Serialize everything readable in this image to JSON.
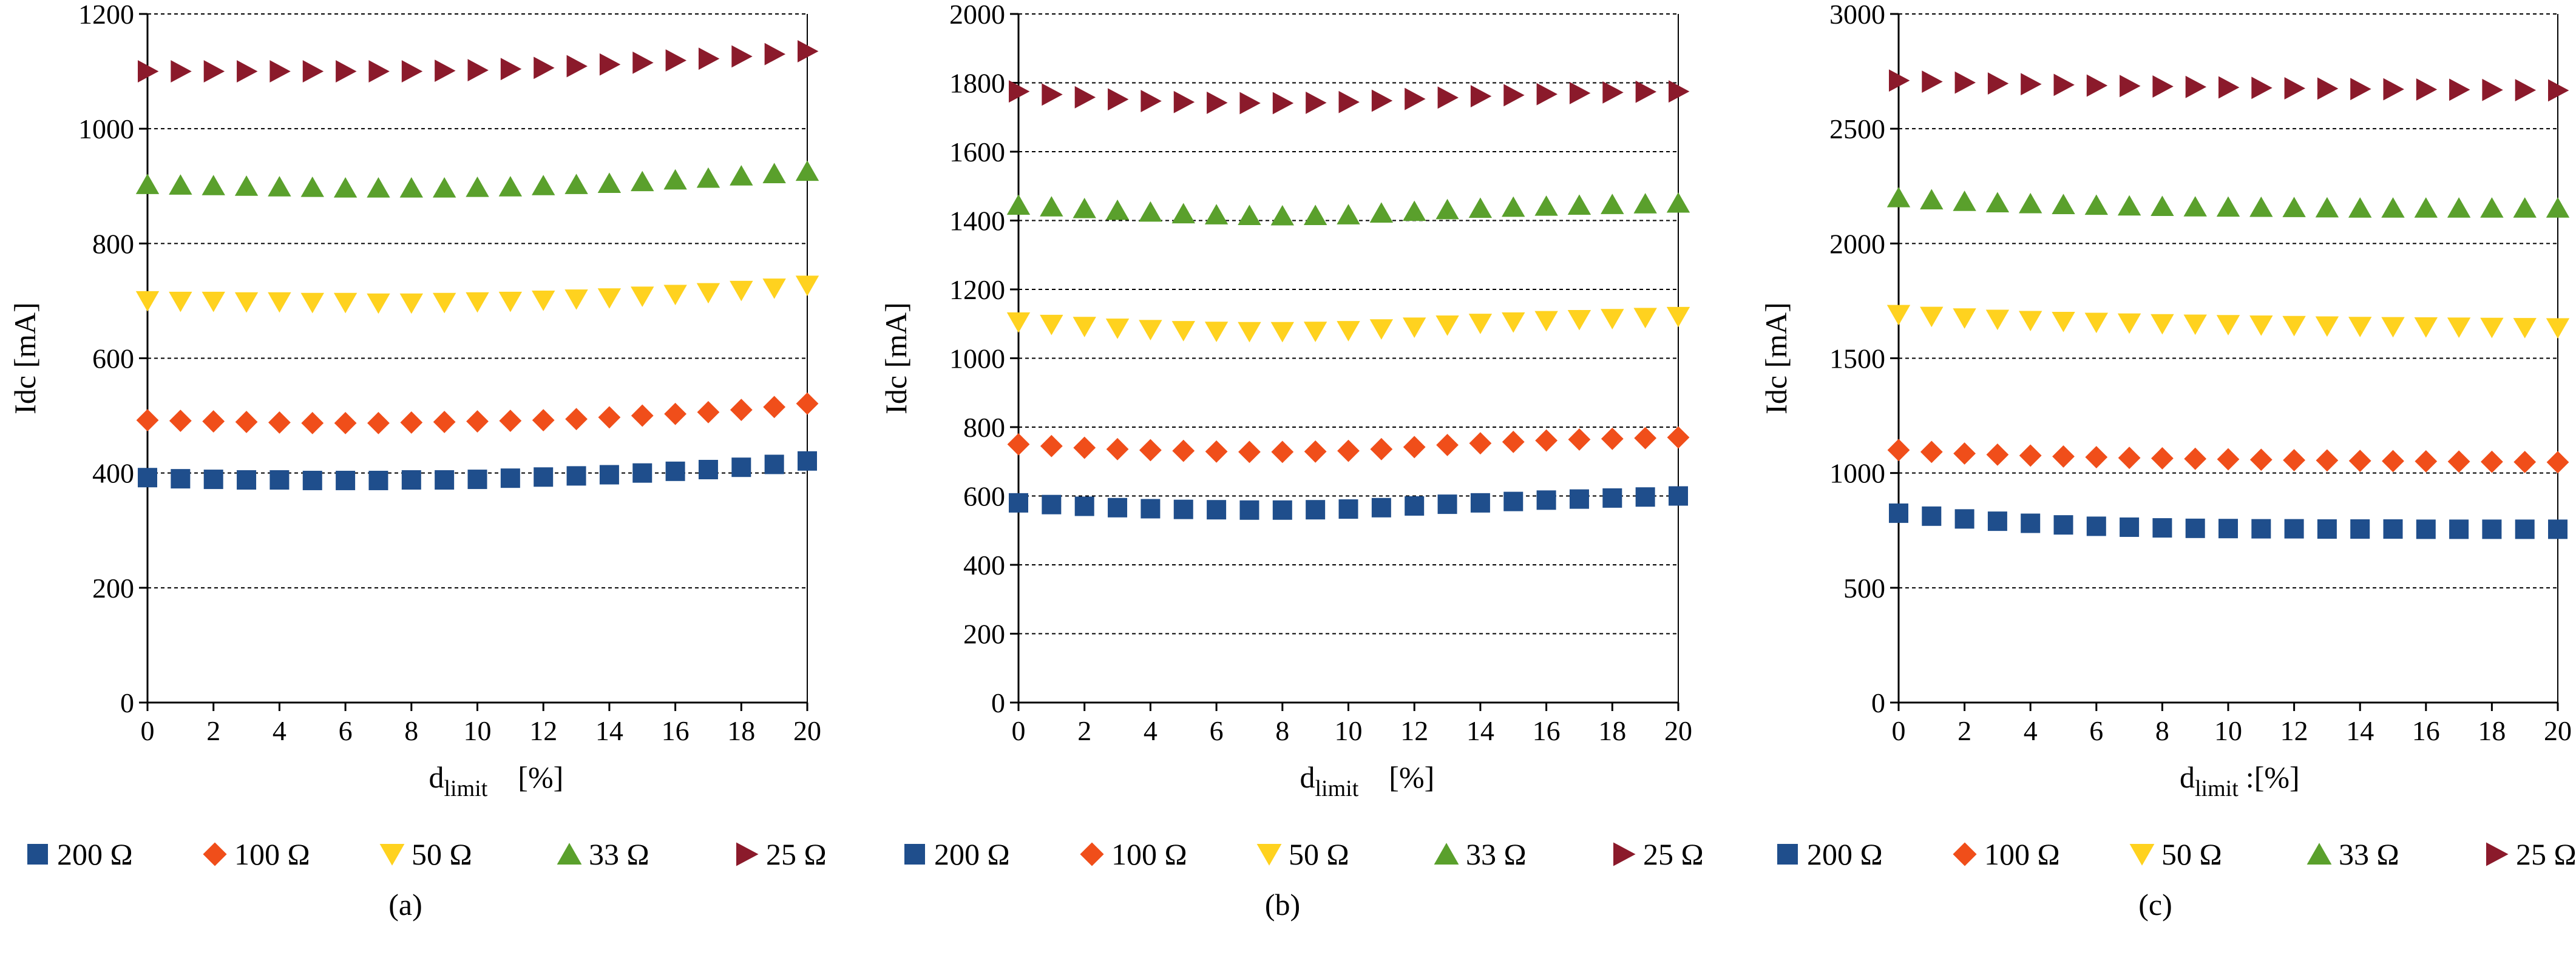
{
  "figure": {
    "series_styles": [
      {
        "name": "200 Ω",
        "marker": "square",
        "color": "#1f4e8c"
      },
      {
        "name": "100 Ω",
        "marker": "diamond",
        "color": "#f04e1a"
      },
      {
        "name": "50 Ω",
        "marker": "triangle-down",
        "color": "#ffd21f"
      },
      {
        "name": "33 Ω",
        "marker": "triangle-up",
        "color": "#5aa02c"
      },
      {
        "name": "25 Ω",
        "marker": "triangle-right",
        "color": "#8b1a2b"
      }
    ]
  },
  "chart_data": [
    {
      "type": "scatter",
      "caption": "(a)",
      "xlabel_main": "d",
      "xlabel_sub": "limit",
      "xlabel_unit": "[%]",
      "ylabel": "Idc [mA]",
      "xlim": [
        0,
        20
      ],
      "ylim": [
        0,
        1200
      ],
      "xticks": [
        "0",
        "2",
        "4",
        "6",
        "8",
        "10",
        "12",
        "14",
        "16",
        "18",
        "20"
      ],
      "yticks": [
        "0",
        "200",
        "400",
        "600",
        "800",
        "1000",
        "1200"
      ],
      "x": [
        0,
        1,
        2,
        3,
        4,
        5,
        6,
        7,
        8,
        9,
        10,
        11,
        12,
        13,
        14,
        15,
        16,
        17,
        18,
        19,
        20
      ],
      "series": [
        {
          "name": "200 Ω",
          "values": [
            392,
            390,
            389,
            388,
            388,
            387,
            387,
            387,
            388,
            388,
            389,
            391,
            393,
            395,
            397,
            400,
            403,
            406,
            410,
            415,
            421
          ]
        },
        {
          "name": "100 Ω",
          "values": [
            492,
            491,
            490,
            489,
            488,
            487,
            487,
            487,
            488,
            489,
            490,
            491,
            492,
            494,
            497,
            500,
            503,
            506,
            510,
            515,
            521
          ]
        },
        {
          "name": "50 Ω",
          "values": [
            700,
            699,
            699,
            698,
            698,
            697,
            697,
            696,
            696,
            697,
            698,
            699,
            701,
            703,
            705,
            708,
            711,
            714,
            718,
            722,
            727
          ]
        },
        {
          "name": "33 Ω",
          "values": [
            903,
            902,
            901,
            900,
            899,
            898,
            897,
            897,
            897,
            897,
            898,
            899,
            901,
            903,
            905,
            908,
            911,
            914,
            918,
            922,
            926
          ]
        },
        {
          "name": "25 Ω",
          "values": [
            1100,
            1100,
            1100,
            1100,
            1100,
            1100,
            1100,
            1100,
            1100,
            1101,
            1102,
            1104,
            1106,
            1109,
            1112,
            1115,
            1119,
            1122,
            1126,
            1130,
            1135
          ]
        }
      ]
    },
    {
      "type": "scatter",
      "caption": "(b)",
      "xlabel_main": "d",
      "xlabel_sub": "limit",
      "xlabel_unit": "[%]",
      "ylabel": "Idc [mA]",
      "xlim": [
        0,
        20
      ],
      "ylim": [
        0,
        2000
      ],
      "xticks": [
        "0",
        "2",
        "4",
        "6",
        "8",
        "10",
        "12",
        "14",
        "16",
        "18",
        "20"
      ],
      "yticks": [
        "0",
        "200",
        "400",
        "600",
        "800",
        "1000",
        "1200",
        "1400",
        "1600",
        "1800",
        "2000"
      ],
      "x": [
        0,
        1,
        2,
        3,
        4,
        5,
        6,
        7,
        8,
        9,
        10,
        11,
        12,
        13,
        14,
        15,
        16,
        17,
        18,
        19,
        20
      ],
      "series": [
        {
          "name": "200 Ω",
          "values": [
            580,
            575,
            570,
            566,
            563,
            561,
            560,
            559,
            559,
            560,
            562,
            566,
            571,
            576,
            580,
            584,
            588,
            591,
            594,
            597,
            600
          ]
        },
        {
          "name": "100 Ω",
          "values": [
            750,
            745,
            740,
            736,
            733,
            731,
            729,
            728,
            728,
            729,
            731,
            736,
            742,
            748,
            753,
            757,
            761,
            764,
            766,
            768,
            770
          ]
        },
        {
          "name": "50 Ω",
          "values": [
            1105,
            1098,
            1092,
            1087,
            1083,
            1080,
            1078,
            1077,
            1077,
            1078,
            1080,
            1085,
            1090,
            1096,
            1101,
            1105,
            1109,
            1112,
            1115,
            1118,
            1121
          ]
        },
        {
          "name": "33 Ω",
          "values": [
            1445,
            1440,
            1435,
            1430,
            1425,
            1420,
            1417,
            1415,
            1414,
            1415,
            1417,
            1422,
            1427,
            1432,
            1436,
            1439,
            1442,
            1445,
            1447,
            1449,
            1451
          ]
        },
        {
          "name": "25 Ω",
          "values": [
            1775,
            1766,
            1758,
            1752,
            1747,
            1744,
            1742,
            1741,
            1741,
            1742,
            1744,
            1748,
            1753,
            1757,
            1761,
            1764,
            1767,
            1770,
            1772,
            1774,
            1775
          ]
        }
      ]
    },
    {
      "type": "scatter",
      "caption": "(c)",
      "xlabel_main": "d",
      "xlabel_sub": "limit",
      "xlabel_unit": ":[%]",
      "ylabel": "Idc [mA]",
      "xlim": [
        0,
        20
      ],
      "ylim": [
        0,
        3000
      ],
      "xticks": [
        "0",
        "2",
        "4",
        "6",
        "8",
        "10",
        "12",
        "14",
        "16",
        "18",
        "20"
      ],
      "yticks": [
        "0",
        "500",
        "1000",
        "1500",
        "2000",
        "2500",
        "3000"
      ],
      "x": [
        0,
        1,
        2,
        3,
        4,
        5,
        6,
        7,
        8,
        9,
        10,
        11,
        12,
        13,
        14,
        15,
        16,
        17,
        18,
        19,
        20
      ],
      "series": [
        {
          "name": "200 Ω",
          "values": [
            825,
            812,
            800,
            790,
            781,
            774,
            768,
            764,
            761,
            759,
            758,
            757,
            757,
            756,
            756,
            756,
            755,
            755,
            755,
            755,
            755
          ]
        },
        {
          "name": "100 Ω",
          "values": [
            1100,
            1092,
            1085,
            1080,
            1076,
            1072,
            1069,
            1066,
            1064,
            1062,
            1060,
            1058,
            1056,
            1055,
            1053,
            1052,
            1051,
            1050,
            1049,
            1048,
            1047
          ]
        },
        {
          "name": "50 Ω",
          "values": [
            1690,
            1682,
            1675,
            1669,
            1664,
            1660,
            1656,
            1653,
            1650,
            1648,
            1646,
            1644,
            1642,
            1640,
            1638,
            1637,
            1636,
            1635,
            1634,
            1633,
            1632
          ]
        },
        {
          "name": "33 Ω",
          "values": [
            2200,
            2191,
            2184,
            2178,
            2174,
            2170,
            2167,
            2164,
            2162,
            2160,
            2159,
            2158,
            2157,
            2156,
            2155,
            2155,
            2155,
            2155,
            2155,
            2155,
            2155
          ]
        },
        {
          "name": "25 Ω",
          "values": [
            2710,
            2705,
            2701,
            2697,
            2694,
            2691,
            2688,
            2686,
            2684,
            2682,
            2680,
            2678,
            2676,
            2675,
            2673,
            2672,
            2671,
            2670,
            2669,
            2668,
            2667
          ]
        }
      ]
    }
  ]
}
